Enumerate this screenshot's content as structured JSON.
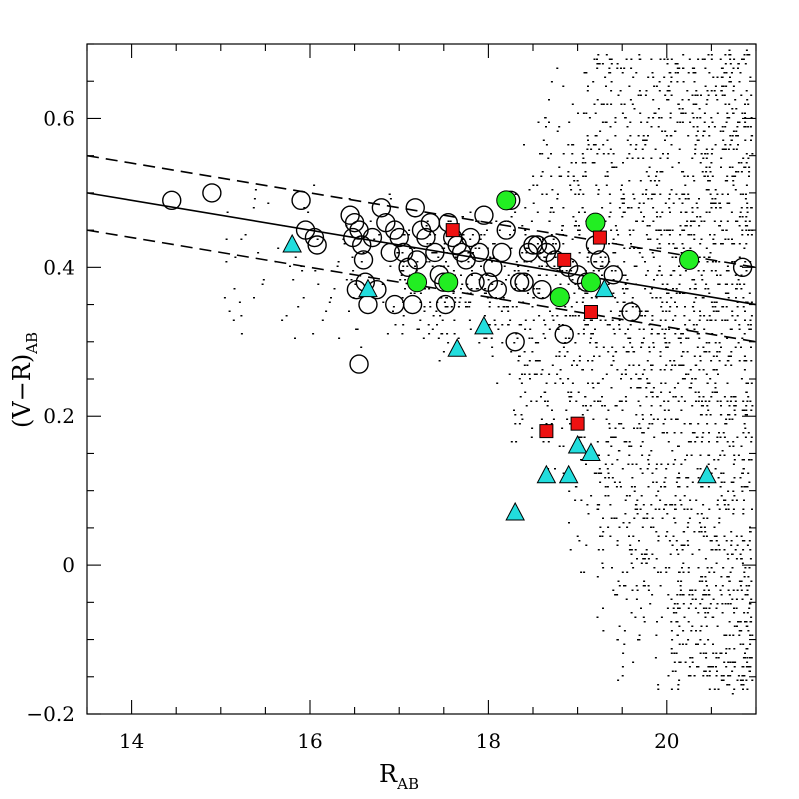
{
  "chart_data": {
    "type": "scatter",
    "xlabel": "R",
    "xlabel_sub": "AB",
    "ylabel_prefix": "(V−R)",
    "ylabel_sub": "AB",
    "xlim": [
      13.5,
      21.0
    ],
    "ylim": [
      -0.2,
      0.7
    ],
    "x_ticks": [
      14,
      16,
      18,
      20
    ],
    "x_tick_labels": [
      "14",
      "16",
      "18",
      "20"
    ],
    "y_ticks": [
      -0.2,
      0,
      0.2,
      0.4,
      0.6
    ],
    "y_tick_labels": [
      "−0.2",
      "0",
      "0.2",
      "0.4",
      "0.6"
    ],
    "x_minor_step": 0.5,
    "y_minor_step": 0.05,
    "lines": [
      {
        "name": "red-sequence-fit",
        "style": "solid",
        "x": [
          13.5,
          21.0
        ],
        "y": [
          0.5,
          0.35
        ]
      },
      {
        "name": "upper-bound",
        "style": "dashed",
        "x": [
          13.5,
          21.0
        ],
        "y": [
          0.55,
          0.4
        ]
      },
      {
        "name": "lower-bound",
        "style": "dashed",
        "x": [
          13.5,
          21.0
        ],
        "y": [
          0.45,
          0.3
        ]
      }
    ],
    "field_points_note": "dense field of small black dots; sampled representation",
    "series": [
      {
        "name": "open-circles",
        "marker": "circle-open",
        "color": "#000000",
        "points": [
          [
            14.45,
            0.49
          ],
          [
            14.9,
            0.5
          ],
          [
            15.9,
            0.49
          ],
          [
            15.95,
            0.45
          ],
          [
            16.05,
            0.44
          ],
          [
            16.08,
            0.43
          ],
          [
            16.45,
            0.47
          ],
          [
            16.48,
            0.44
          ],
          [
            16.5,
            0.46
          ],
          [
            16.52,
            0.37
          ],
          [
            16.55,
            0.45
          ],
          [
            16.58,
            0.43
          ],
          [
            16.6,
            0.41
          ],
          [
            16.62,
            0.38
          ],
          [
            16.65,
            0.35
          ],
          [
            16.7,
            0.44
          ],
          [
            16.75,
            0.37
          ],
          [
            16.8,
            0.48
          ],
          [
            16.85,
            0.46
          ],
          [
            16.9,
            0.42
          ],
          [
            16.95,
            0.35
          ],
          [
            17.0,
            0.44
          ],
          [
            17.05,
            0.42
          ],
          [
            17.1,
            0.4
          ],
          [
            17.15,
            0.35
          ],
          [
            17.18,
            0.48
          ],
          [
            17.25,
            0.45
          ],
          [
            17.3,
            0.44
          ],
          [
            17.35,
            0.46
          ],
          [
            17.4,
            0.42
          ],
          [
            17.45,
            0.39
          ],
          [
            17.5,
            0.38
          ],
          [
            17.52,
            0.35
          ],
          [
            17.55,
            0.46
          ],
          [
            17.6,
            0.44
          ],
          [
            17.65,
            0.43
          ],
          [
            17.7,
            0.42
          ],
          [
            17.75,
            0.41
          ],
          [
            17.8,
            0.44
          ],
          [
            17.85,
            0.38
          ],
          [
            17.9,
            0.42
          ],
          [
            17.95,
            0.47
          ],
          [
            18.0,
            0.38
          ],
          [
            18.05,
            0.4
          ],
          [
            18.1,
            0.37
          ],
          [
            18.15,
            0.42
          ],
          [
            18.2,
            0.45
          ],
          [
            18.25,
            0.49
          ],
          [
            18.3,
            0.3
          ],
          [
            18.35,
            0.38
          ],
          [
            18.4,
            0.38
          ],
          [
            18.45,
            0.42
          ],
          [
            18.5,
            0.43
          ],
          [
            18.55,
            0.43
          ],
          [
            18.6,
            0.37
          ],
          [
            18.65,
            0.42
          ],
          [
            18.7,
            0.43
          ],
          [
            18.75,
            0.41
          ],
          [
            18.85,
            0.31
          ],
          [
            18.9,
            0.4
          ],
          [
            19.0,
            0.39
          ],
          [
            19.1,
            0.38
          ],
          [
            19.2,
            0.43
          ],
          [
            19.25,
            0.41
          ],
          [
            19.4,
            0.39
          ],
          [
            19.6,
            0.34
          ],
          [
            20.85,
            0.4
          ],
          [
            16.55,
            0.27
          ],
          [
            16.95,
            0.45
          ],
          [
            17.2,
            0.41
          ]
        ]
      },
      {
        "name": "green-circles",
        "marker": "circle-filled",
        "color": "#22ee22",
        "points": [
          [
            17.2,
            0.38
          ],
          [
            17.55,
            0.38
          ],
          [
            18.2,
            0.49
          ],
          [
            18.8,
            0.36
          ],
          [
            19.15,
            0.38
          ],
          [
            19.2,
            0.46
          ],
          [
            20.25,
            0.41
          ]
        ]
      },
      {
        "name": "red-squares",
        "marker": "square-filled",
        "color": "#ee1111",
        "points": [
          [
            17.6,
            0.45
          ],
          [
            18.65,
            0.18
          ],
          [
            18.85,
            0.41
          ],
          [
            19.0,
            0.19
          ],
          [
            19.15,
            0.34
          ],
          [
            19.25,
            0.44
          ]
        ]
      },
      {
        "name": "cyan-triangles",
        "marker": "triangle-filled",
        "color": "#22dddd",
        "points": [
          [
            15.8,
            0.43
          ],
          [
            16.65,
            0.37
          ],
          [
            17.65,
            0.29
          ],
          [
            17.95,
            0.32
          ],
          [
            18.3,
            0.07
          ],
          [
            18.65,
            0.12
          ],
          [
            18.9,
            0.12
          ],
          [
            19.0,
            0.16
          ],
          [
            19.15,
            0.15
          ],
          [
            19.3,
            0.37
          ],
          [
            20.45,
            0.12
          ]
        ]
      }
    ]
  }
}
